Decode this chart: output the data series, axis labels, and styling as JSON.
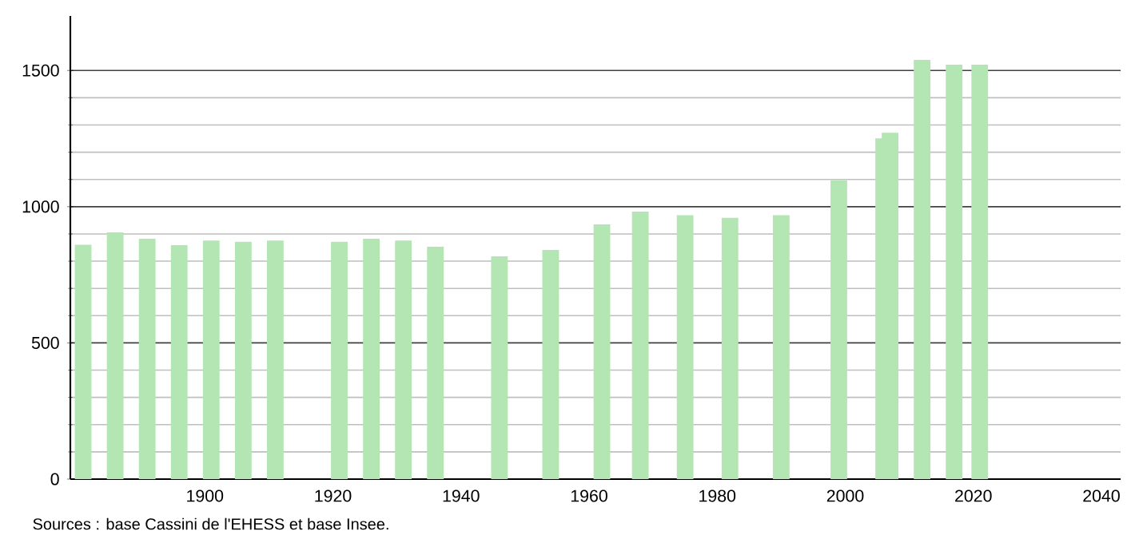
{
  "chart_data": {
    "type": "bar",
    "x": [
      1881,
      1886,
      1891,
      1896,
      1901,
      1906,
      1911,
      1921,
      1926,
      1931,
      1936,
      1946,
      1954,
      1962,
      1968,
      1975,
      1982,
      1990,
      1999,
      2006,
      2007,
      2012,
      2017,
      2021
    ],
    "values": [
      860,
      906,
      882,
      859,
      876,
      871,
      876,
      871,
      882,
      876,
      853,
      818,
      841,
      935,
      982,
      969,
      959,
      969,
      1096,
      1251,
      1271,
      1539,
      1521,
      1521
    ],
    "color": "#b3e6b3",
    "xlim": [
      1879,
      2043
    ],
    "ylim": [
      0,
      1700
    ],
    "xticks": [
      1900,
      1920,
      1940,
      1960,
      1980,
      2000,
      2020,
      2040
    ],
    "yticks": [
      0,
      500,
      1000,
      1500
    ],
    "grid": "y",
    "annotations": [
      "Sources : base Cassini de l'EHESS et base Insee."
    ]
  }
}
